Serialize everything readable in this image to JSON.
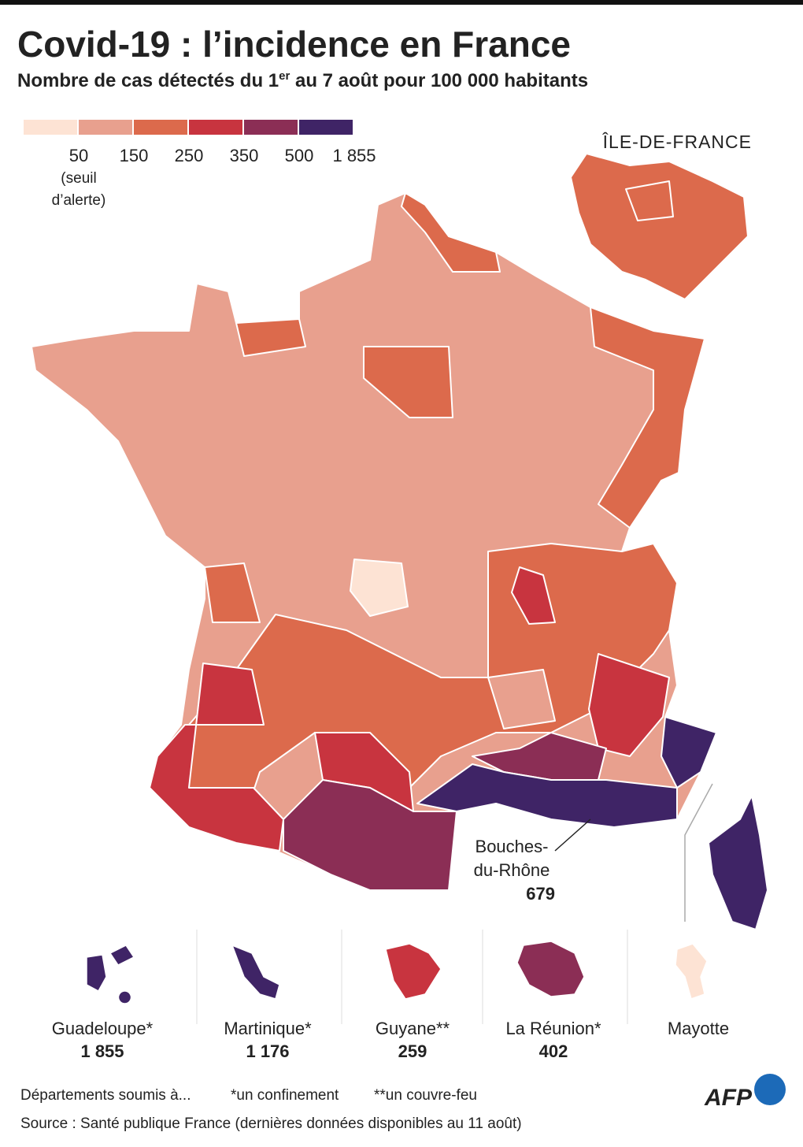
{
  "header": {
    "title": "Covid-19 : l’incidence en France",
    "subtitle": {
      "before": "Nombre de cas détectés du 1",
      "sup": "er",
      "after": " au 7 août pour 100 000 habitants"
    }
  },
  "legend": {
    "colors": [
      "#fde3d4",
      "#e8a08e",
      "#dc6a4c",
      "#c8343f",
      "#8b2e55",
      "#3f2466"
    ],
    "thresholds": [
      50,
      150,
      250,
      350,
      500,
      {
        "value": 1855,
        "label": "1 855"
      }
    ],
    "note": [
      "(seuil",
      "d’alerte)"
    ]
  },
  "inset": {
    "label": "ÎLE-DE-FRANCE"
  },
  "callout": {
    "name": [
      "Bouches-",
      "du-Rhône"
    ],
    "value": 679
  },
  "overseas": [
    {
      "name": "Guadeloupe*",
      "value": 1855,
      "value_label": "1 855",
      "color": "#3f2466"
    },
    {
      "name": "Martinique*",
      "value": 1176,
      "value_label": "1 176",
      "color": "#3f2466"
    },
    {
      "name": "Guyane**",
      "value": 259,
      "color": "#c8343f"
    },
    {
      "name": "La Réunion*",
      "value": 402,
      "color": "#8b2e55"
    },
    {
      "name": "Mayotte",
      "color": "#fde3d4"
    }
  ],
  "footer": {
    "note": [
      "Départements soumis à...",
      "*un confinement",
      "**un couvre-feu"
    ],
    "source": "Source : Santé publique France (dernières données disponibles au 11 août)",
    "logo": "AFP"
  }
}
